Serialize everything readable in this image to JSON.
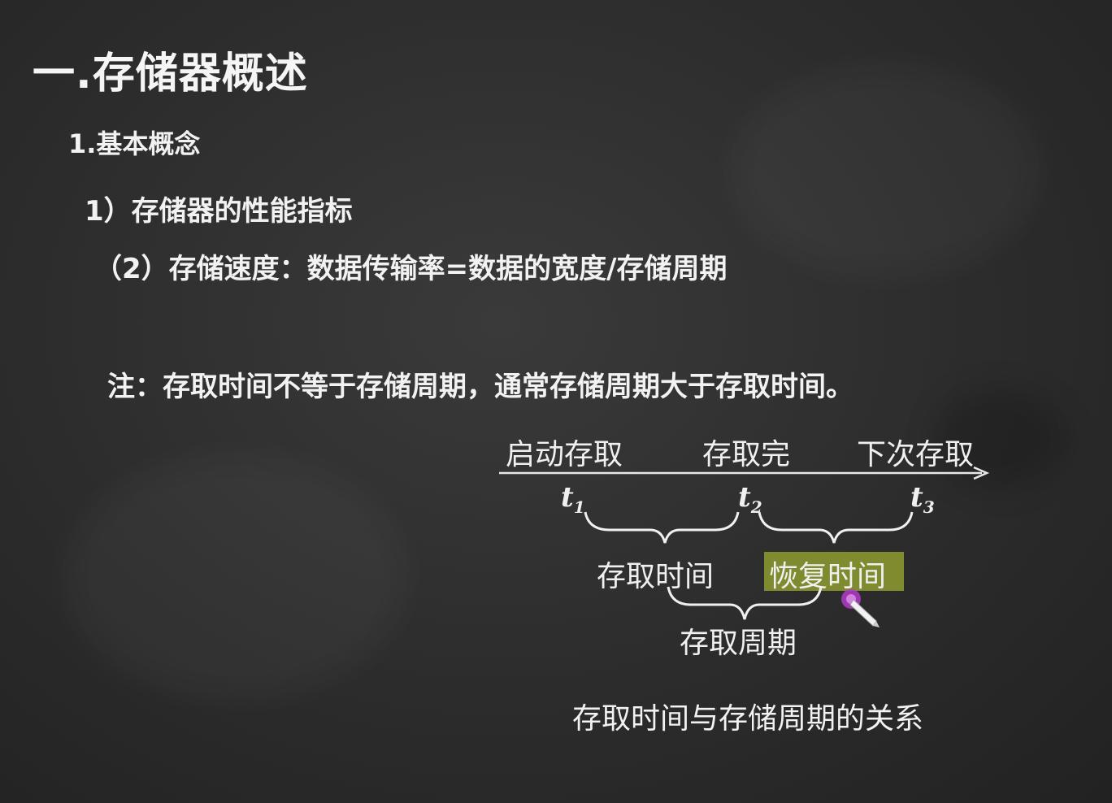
{
  "slide": {
    "title": "一.存储器概述",
    "heading_2": "1.基本概念",
    "heading_3": "1）存储器的性能指标",
    "heading_4": "（2）存储速度：数据传输率=数据的宽度/存储周期",
    "note": "注：存取时间不等于存储周期，通常存储周期大于存取时间。"
  },
  "diagram": {
    "top_labels": {
      "start": "启动存取",
      "done": "存取完",
      "next": "下次存取"
    },
    "time_points": {
      "t1": {
        "var": "t",
        "sub": "1"
      },
      "t2": {
        "var": "t",
        "sub": "2"
      },
      "t3": {
        "var": "t",
        "sub": "3"
      }
    },
    "access_time": "存取时间",
    "recovery_time": "恢复时间",
    "cycle": "存取周期",
    "caption": "存取时间与存储周期的关系",
    "highlight_color": "#7f8b2e"
  },
  "cursor": {
    "icon": "pen-pointer-icon",
    "color": "#b23cc8"
  }
}
